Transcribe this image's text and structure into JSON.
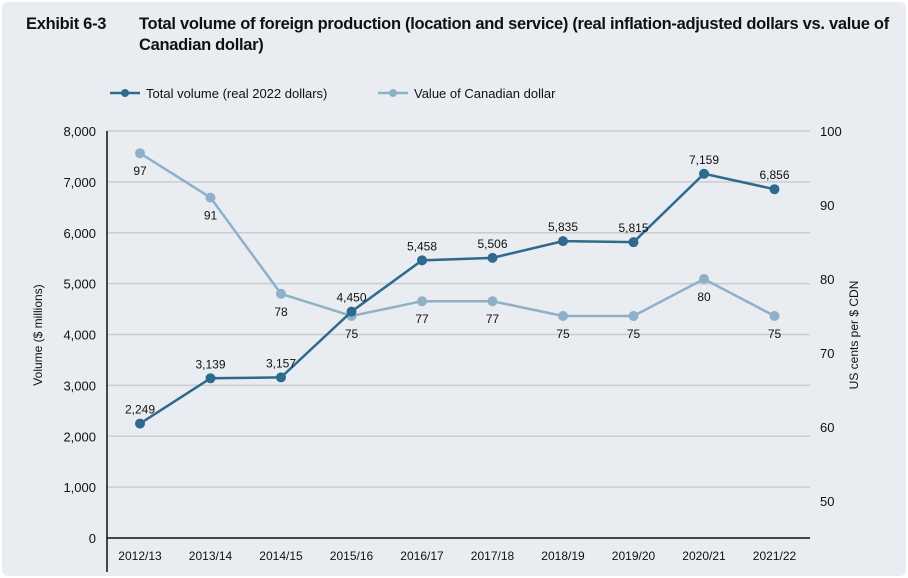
{
  "chart_data": {
    "type": "line",
    "exhibit_label": "Exhibit 6-3",
    "title": "Total volume of foreign production (location and service) (real inflation-adjusted dollars vs. value of Canadian dollar)",
    "categories": [
      "2012/13",
      "2013/14",
      "2014/15",
      "2015/16",
      "2016/17",
      "2017/18",
      "2018/19",
      "2019/20",
      "2020/21",
      "2021/22"
    ],
    "series": [
      {
        "name": "Total volume (real 2022 dollars)",
        "axis": "left",
        "color": "#2e6a8e",
        "values": [
          2249,
          3139,
          3157,
          4450,
          5458,
          5506,
          5835,
          5815,
          7159,
          6856
        ],
        "labels": [
          "2,249",
          "3,139",
          "3,157",
          "4,450",
          "5,458",
          "5,506",
          "5,835",
          "5,815",
          "7,159",
          "6,856"
        ]
      },
      {
        "name": "Value of Canadian dollar",
        "axis": "right",
        "color": "#8fb1c7",
        "values": [
          97,
          91,
          78,
          75,
          77,
          77,
          75,
          75,
          80,
          75
        ],
        "labels": [
          "97",
          "91",
          "78",
          "75",
          "77",
          "77",
          "75",
          "75",
          "80",
          "75"
        ]
      }
    ],
    "ylabel": "Volume ($ millions)",
    "ylabel_right": "US cents per $ CDN",
    "ylim": [
      0,
      8000
    ],
    "yticks": [
      "0",
      "1,000",
      "2,000",
      "3,000",
      "4,000",
      "5,000",
      "6,000",
      "7,000",
      "8,000"
    ],
    "ylim_right": [
      45,
      100
    ],
    "yticks_right": [
      "50",
      "60",
      "70",
      "80",
      "90",
      "100"
    ],
    "grid": true,
    "legend_position": "top"
  }
}
